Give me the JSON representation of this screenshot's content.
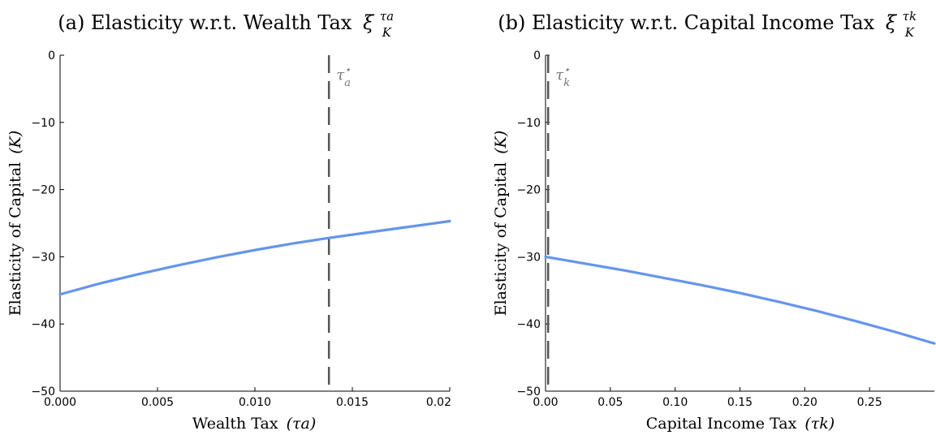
{
  "chart_data": [
    {
      "type": "line",
      "panel": "(a)",
      "title": "(a) Elasticity w.r.t. Wealth Tax",
      "title_symbol": {
        "base": "ξ",
        "superscript": "τa",
        "subscript": "K"
      },
      "xlabel": "Wealth Tax",
      "xlabel_symbol": "(τa)",
      "ylabel": "Elasticity of Capital",
      "ylabel_symbol": "(K)",
      "xlim": [
        0.0,
        0.02
      ],
      "ylim": [
        -50,
        0
      ],
      "xticks": [
        0.0,
        0.005,
        0.01,
        0.015,
        0.02
      ],
      "xtick_labels": [
        "0.000",
        "0.005",
        "0.010",
        "0.015",
        "0.02"
      ],
      "yticks": [
        0,
        -10,
        -20,
        -30,
        -40,
        -50
      ],
      "ytick_labels": [
        "0",
        "−10",
        "−20",
        "−30",
        "−40",
        "−50"
      ],
      "grid": false,
      "series": [
        {
          "color": "#6495ed",
          "x": [
            0.0,
            0.002,
            0.004,
            0.006,
            0.008,
            0.01,
            0.012,
            0.0138,
            0.016,
            0.018,
            0.02
          ],
          "y": [
            -35.6,
            -34.0,
            -32.6,
            -31.3,
            -30.1,
            -29.0,
            -28.0,
            -27.2,
            -26.3,
            -25.5,
            -24.7
          ]
        }
      ],
      "reference_line": {
        "x": 0.0138,
        "style": "dashed",
        "color": "#555555",
        "label": "τ",
        "label_sup": "⋆",
        "label_sub": "a"
      }
    },
    {
      "type": "line",
      "panel": "(b)",
      "title": "(b) Elasticity w.r.t. Capital Income Tax",
      "title_symbol": {
        "base": "ξ",
        "superscript": "τk",
        "subscript": "K"
      },
      "xlabel": "Capital Income Tax",
      "xlabel_symbol": "(τk)",
      "ylabel": "Elasticity of Capital",
      "ylabel_symbol": "(K)",
      "xlim": [
        0.0,
        0.3
      ],
      "ylim": [
        -50,
        0
      ],
      "xticks": [
        0.0,
        0.05,
        0.1,
        0.15,
        0.2,
        0.25
      ],
      "xtick_labels": [
        "0.00",
        "0.05",
        "0.10",
        "0.15",
        "0.20",
        "0.25"
      ],
      "yticks": [
        0,
        -10,
        -20,
        -30,
        -40,
        -50
      ],
      "ytick_labels": [
        "0",
        "−10",
        "−20",
        "−30",
        "−40",
        "−50"
      ],
      "grid": false,
      "series": [
        {
          "color": "#6495ed",
          "x": [
            0.0,
            0.03,
            0.06,
            0.09,
            0.12,
            0.15,
            0.18,
            0.21,
            0.24,
            0.27,
            0.3
          ],
          "y": [
            -30.0,
            -31.0,
            -32.0,
            -33.1,
            -34.2,
            -35.4,
            -36.7,
            -38.1,
            -39.6,
            -41.2,
            -42.9
          ]
        }
      ],
      "reference_line": {
        "x": 0.002,
        "style": "dashed",
        "color": "#555555",
        "label": "τ",
        "label_sup": "⋆",
        "label_sub": "k"
      }
    }
  ]
}
